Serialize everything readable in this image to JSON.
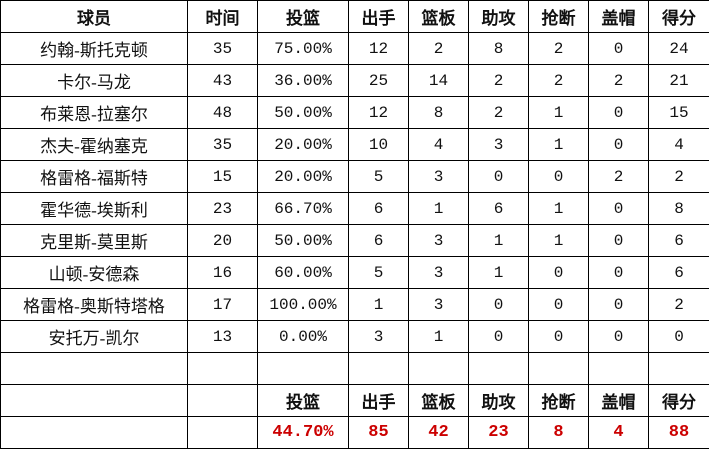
{
  "headers": [
    "球员",
    "时间",
    "投篮",
    "出手",
    "篮板",
    "助攻",
    "抢断",
    "盖帽",
    "得分"
  ],
  "rows": [
    [
      "约翰-斯托克顿",
      "35",
      "75.00%",
      "12",
      "2",
      "8",
      "2",
      "0",
      "24"
    ],
    [
      "卡尔-马龙",
      "43",
      "36.00%",
      "25",
      "14",
      "2",
      "2",
      "2",
      "21"
    ],
    [
      "布莱恩-拉塞尔",
      "48",
      "50.00%",
      "12",
      "8",
      "2",
      "1",
      "0",
      "15"
    ],
    [
      "杰夫-霍纳塞克",
      "35",
      "20.00%",
      "10",
      "4",
      "3",
      "1",
      "0",
      "4"
    ],
    [
      "格雷格-福斯特",
      "15",
      "20.00%",
      "5",
      "3",
      "0",
      "0",
      "2",
      "2"
    ],
    [
      "霍华德-埃斯利",
      "23",
      "66.70%",
      "6",
      "1",
      "6",
      "1",
      "0",
      "8"
    ],
    [
      "克里斯-莫里斯",
      "20",
      "50.00%",
      "6",
      "3",
      "1",
      "1",
      "0",
      "6"
    ],
    [
      "山顿-安德森",
      "16",
      "60.00%",
      "5",
      "3",
      "1",
      "0",
      "0",
      "6"
    ],
    [
      "格雷格-奥斯特塔格",
      "17",
      "100.00%",
      "1",
      "3",
      "0",
      "0",
      "0",
      "2"
    ],
    [
      "安托万-凯尔",
      "13",
      "0.00%",
      "3",
      "1",
      "0",
      "0",
      "0",
      "0"
    ]
  ],
  "totals_labels": [
    "投篮",
    "出手",
    "篮板",
    "助攻",
    "抢断",
    "盖帽",
    "得分"
  ],
  "totals": [
    "44.70%",
    "85",
    "42",
    "23",
    "8",
    "4",
    "88"
  ],
  "colors": {
    "totals_text": "#cc0000",
    "border": "#000000"
  }
}
